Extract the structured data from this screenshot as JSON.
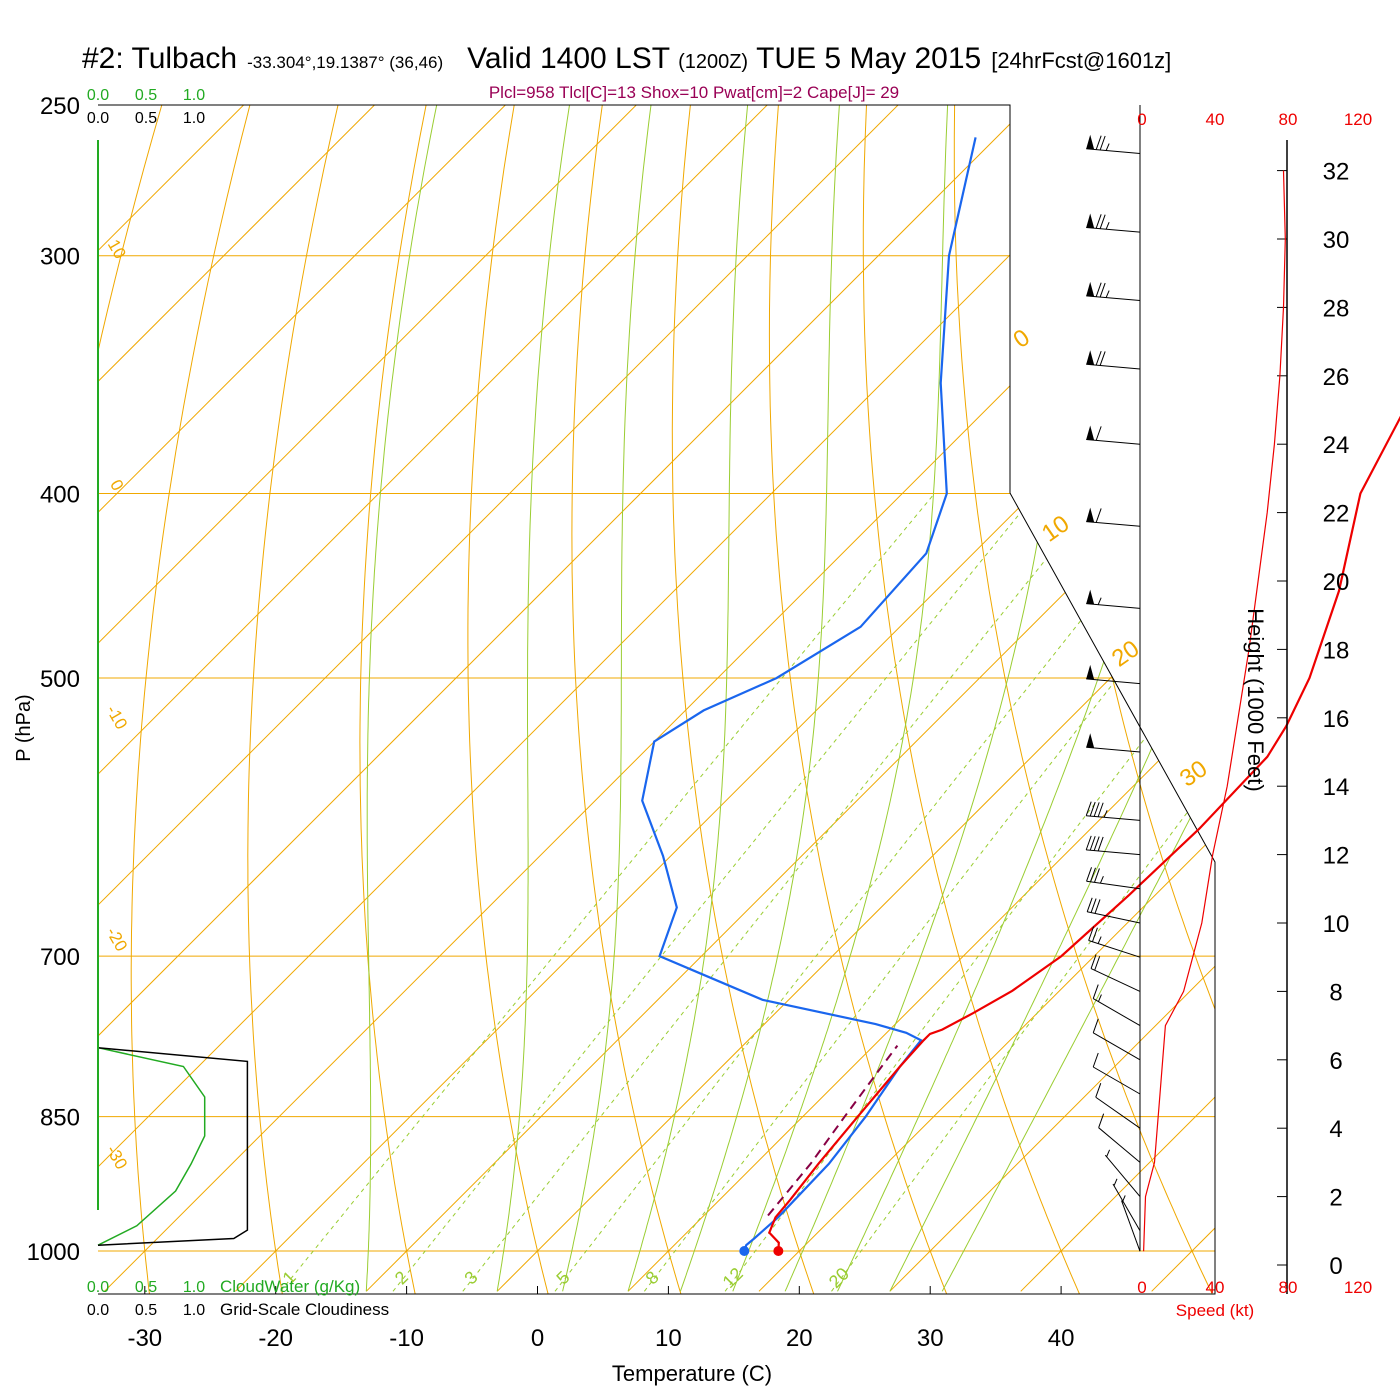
{
  "header": {
    "station": "#2: Tulbach",
    "coords": "-33.304°,19.1387° (36,46)",
    "valid_main": "Valid 1400 LST",
    "valid_z": "(1200Z)",
    "date": "TUE 5 May 2015",
    "forecast": "[24hrFcst@1601z]",
    "indices": "Plcl=958 Tlcl[C]=13 Shox=10 Pwat[cm]=2 Cape[J]= 29"
  },
  "colors": {
    "temperature": "#ee0000",
    "dewpoint": "#1a66ee",
    "parcel": "#880044",
    "isobar_isotherm": "#f0a800",
    "dry_adiabat_label": "#f0a800",
    "moist_adiabat": "#9acd32",
    "mixing_ratio": "#9acd32",
    "cloud_water": "#22aa22",
    "cloudiness": "#000000",
    "speed": "#ee0000",
    "indices_text": "#990055"
  },
  "chart_data": {
    "type": "skew-t",
    "xlabel": "Temperature (C)",
    "ylabel": "P (hPa)",
    "x_ticks": [
      "-30",
      "-20",
      "-10",
      "0",
      "10",
      "20",
      "30",
      "40"
    ],
    "x_tick_values": [
      -30,
      -20,
      -10,
      0,
      10,
      20,
      30,
      40
    ],
    "pressure_ticks": [
      "250",
      "300",
      "400",
      "500",
      "700",
      "850",
      "1000"
    ],
    "pressure_tick_values": [
      250,
      300,
      400,
      500,
      700,
      850,
      1000
    ],
    "mixing_ratio_labels": [
      "1",
      "2",
      "3",
      "5",
      "8",
      "12",
      "20"
    ],
    "mixing_ratio_values": [
      1,
      2,
      3,
      5,
      8,
      12,
      20
    ],
    "dry_adiabat_left_labels": [
      "10",
      "0",
      "-10",
      "-20",
      "-30"
    ],
    "dry_adiabat_right_labels": [
      "0",
      "10",
      "20",
      "30"
    ],
    "temperature_profile": [
      {
        "p": 1000,
        "t": 18.4
      },
      {
        "p": 990,
        "t": 17.8
      },
      {
        "p": 978,
        "t": 16.3
      },
      {
        "p": 960,
        "t": 15.6
      },
      {
        "p": 940,
        "t": 15.4
      },
      {
        "p": 900,
        "t": 14.8
      },
      {
        "p": 850,
        "t": 14.2
      },
      {
        "p": 800,
        "t": 13.6
      },
      {
        "p": 775,
        "t": 13.4
      },
      {
        "p": 769,
        "t": 13.4
      },
      {
        "p": 765,
        "t": 14.0
      },
      {
        "p": 750,
        "t": 15.1
      },
      {
        "p": 730,
        "t": 16.4
      },
      {
        "p": 700,
        "t": 17.5
      },
      {
        "p": 650,
        "t": 18.0
      },
      {
        "p": 600,
        "t": 18.3
      },
      {
        "p": 550,
        "t": 18.0
      },
      {
        "p": 530,
        "t": 17.1
      },
      {
        "p": 500,
        "t": 15.2
      },
      {
        "p": 450,
        "t": 10.8
      },
      {
        "p": 400,
        "t": 5.0
      },
      {
        "p": 350,
        "t": 1.0
      },
      {
        "p": 300,
        "t": -3.2
      },
      {
        "p": 260,
        "t": -7.0
      }
    ],
    "dewpoint_profile": [
      {
        "p": 1000,
        "t": 15.8
      },
      {
        "p": 993,
        "t": 15.5
      },
      {
        "p": 985,
        "t": 15.6
      },
      {
        "p": 960,
        "t": 15.8
      },
      {
        "p": 900,
        "t": 15.6
      },
      {
        "p": 850,
        "t": 14.8
      },
      {
        "p": 800,
        "t": 13.6
      },
      {
        "p": 775,
        "t": 13.2
      },
      {
        "p": 768,
        "t": 11.5
      },
      {
        "p": 760,
        "t": 8.5
      },
      {
        "p": 738,
        "t": -2.0
      },
      {
        "p": 715,
        "t": -8.7
      },
      {
        "p": 700,
        "t": -13.2
      },
      {
        "p": 660,
        "t": -15.6
      },
      {
        "p": 620,
        "t": -20.6
      },
      {
        "p": 580,
        "t": -26.4
      },
      {
        "p": 540,
        "t": -30.0
      },
      {
        "p": 520,
        "t": -28.6
      },
      {
        "p": 500,
        "t": -25.5
      },
      {
        "p": 470,
        "t": -23.0
      },
      {
        "p": 430,
        "t": -23.6
      },
      {
        "p": 400,
        "t": -26.6
      },
      {
        "p": 350,
        "t": -35.5
      },
      {
        "p": 300,
        "t": -44.6
      },
      {
        "p": 260,
        "t": -51.6
      }
    ],
    "parcel_profile": [
      {
        "p": 958,
        "t": 14.9
      },
      {
        "p": 900,
        "t": 14.2
      },
      {
        "p": 850,
        "t": 13.2
      },
      {
        "p": 800,
        "t": 12.2
      },
      {
        "p": 780,
        "t": 11.8
      }
    ],
    "surface_temperature": 18.4,
    "surface_dewpoint": 15.8,
    "speed_axis_label": "Speed (kt)",
    "speed_ticks": [
      "0",
      "40",
      "80",
      "120"
    ],
    "speed_tick_values": [
      0,
      40,
      80,
      120
    ],
    "height_axis_label": "Height (1000 Feet)",
    "height_ticks": [
      "0",
      "2",
      "4",
      "6",
      "8",
      "10",
      "12",
      "14",
      "16",
      "18",
      "20",
      "22",
      "24",
      "26",
      "28",
      "30",
      "32"
    ],
    "height_tick_values": [
      0,
      2,
      4,
      6,
      8,
      10,
      12,
      14,
      16,
      18,
      20,
      22,
      24,
      26,
      28,
      30,
      32
    ],
    "wind_speed_profile": [
      {
        "h": 0.4,
        "kt": 2
      },
      {
        "h": 2,
        "kt": 3
      },
      {
        "h": 3,
        "kt": 8
      },
      {
        "h": 5,
        "kt": 11
      },
      {
        "h": 7,
        "kt": 14
      },
      {
        "h": 8,
        "kt": 24
      },
      {
        "h": 10,
        "kt": 34
      },
      {
        "h": 12,
        "kt": 40
      },
      {
        "h": 14,
        "kt": 48
      },
      {
        "h": 16,
        "kt": 54
      },
      {
        "h": 18,
        "kt": 60
      },
      {
        "h": 20,
        "kt": 65
      },
      {
        "h": 22,
        "kt": 70
      },
      {
        "h": 24,
        "kt": 74
      },
      {
        "h": 26,
        "kt": 77
      },
      {
        "h": 28,
        "kt": 79
      },
      {
        "h": 30,
        "kt": 80
      },
      {
        "h": 32,
        "kt": 79
      }
    ],
    "wind_barbs": [
      {
        "h": 32.5,
        "kt": 75,
        "dir": 275
      },
      {
        "h": 30.2,
        "kt": 75,
        "dir": 275
      },
      {
        "h": 28.2,
        "kt": 75,
        "dir": 275
      },
      {
        "h": 26.2,
        "kt": 70,
        "dir": 275
      },
      {
        "h": 24.0,
        "kt": 60,
        "dir": 275
      },
      {
        "h": 21.6,
        "kt": 60,
        "dir": 275
      },
      {
        "h": 19.2,
        "kt": 55,
        "dir": 275
      },
      {
        "h": 17.0,
        "kt": 50,
        "dir": 275
      },
      {
        "h": 15.0,
        "kt": 50,
        "dir": 275
      },
      {
        "h": 13.0,
        "kt": 45,
        "dir": 275
      },
      {
        "h": 12.0,
        "kt": 40,
        "dir": 275
      },
      {
        "h": 11.0,
        "kt": 35,
        "dir": 278
      },
      {
        "h": 10.0,
        "kt": 30,
        "dir": 282
      },
      {
        "h": 9.0,
        "kt": 25,
        "dir": 288
      },
      {
        "h": 8.0,
        "kt": 20,
        "dir": 295
      },
      {
        "h": 7.0,
        "kt": 15,
        "dir": 300
      },
      {
        "h": 6.0,
        "kt": 10,
        "dir": 300
      },
      {
        "h": 5.0,
        "kt": 10,
        "dir": 300
      },
      {
        "h": 4.0,
        "kt": 10,
        "dir": 305
      },
      {
        "h": 3.0,
        "kt": 10,
        "dir": 310
      },
      {
        "h": 2.0,
        "kt": 5,
        "dir": 320
      },
      {
        "h": 1.0,
        "kt": 5,
        "dir": 330
      },
      {
        "h": 0.4,
        "kt": 5,
        "dir": 340
      }
    ],
    "cloud_axis_ticks": [
      "0.0",
      "0.5",
      "1.0"
    ],
    "cloud_water_label": "CloudWater (g/Kg)",
    "cloudiness_label": "Grid-Scale Cloudiness",
    "cloud_water_profile": [
      {
        "p": 993,
        "v": 0.0
      },
      {
        "p": 970,
        "v": 0.2
      },
      {
        "p": 930,
        "v": 0.4
      },
      {
        "p": 900,
        "v": 0.48
      },
      {
        "p": 870,
        "v": 0.55
      },
      {
        "p": 830,
        "v": 0.55
      },
      {
        "p": 800,
        "v": 0.44
      },
      {
        "p": 782,
        "v": 0.0
      }
    ],
    "cloudiness_profile": [
      {
        "p": 993,
        "v": 0.0
      },
      {
        "p": 985,
        "v": 0.7
      },
      {
        "p": 975,
        "v": 0.77
      },
      {
        "p": 795,
        "v": 0.77
      },
      {
        "p": 782,
        "v": 0.0
      }
    ]
  }
}
